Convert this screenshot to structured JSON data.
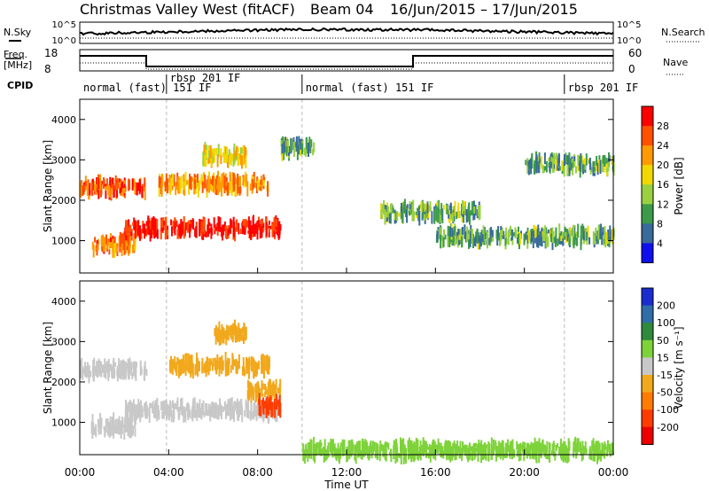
{
  "header": {
    "station": "Christmas Valley West (fitACF)",
    "beam": "Beam 04",
    "date_range": "16/Jun/2015 – 17/Jun/2015"
  },
  "summary_panels": {
    "nsky_label": "N.Sky",
    "nsearch_label": "N.Search",
    "nsky_ticks": [
      "10^5",
      "10^0"
    ],
    "nsearch_ticks": [
      "10^5",
      "10^0"
    ],
    "freq_label_1": "Freq.",
    "freq_label_2": "[MHz]",
    "freq_ticks": [
      "18",
      "8"
    ],
    "nave_label": "Nave",
    "nave_ticks": [
      "60",
      "0"
    ],
    "cpid_label": "CPID",
    "cpid_segments": [
      {
        "label": "normal (fast)  151 IF",
        "start_hour": 0.0
      },
      {
        "label": "rbsp 201 IF",
        "start_hour": 3.9
      },
      {
        "label": "normal (fast)  151 IF",
        "start_hour": 10.0
      },
      {
        "label": "rbsp 201 IF",
        "start_hour": 21.8
      }
    ]
  },
  "power_panel": {
    "ylabel": "Slant Range [km]",
    "colorbar_label": "Power [dB]",
    "colorbar_ticks": [
      "28",
      "24",
      "20",
      "16",
      "12",
      "8",
      "4"
    ],
    "colorbar_colors": [
      "#ff0000",
      "#ff5000",
      "#ff9a00",
      "#f0d800",
      "#98d040",
      "#3c9a4a",
      "#386a9a",
      "#1010ee"
    ]
  },
  "velocity_panel": {
    "ylabel": "Slant Range [km]",
    "colorbar_label": "Velocity [m s⁻¹]",
    "colorbar_ticks": [
      "200",
      "100",
      "50",
      "15",
      "-15",
      "-50",
      "-100",
      "-200"
    ],
    "colorbar_colors": [
      "#1a2cd0",
      "#2f6ea8",
      "#2f8a3c",
      "#7ed23a",
      "#c8c8c8",
      "#f2a81c",
      "#ff7c00",
      "#ff3c00",
      "#ee0000"
    ],
    "ground_scatter_color": "#c0c0c0"
  },
  "chart_data": [
    {
      "type": "heatmap",
      "name": "power",
      "xlabel": "Time UT",
      "ylabel": "Slant Range [km]",
      "xlim": [
        "00:00",
        "00:00"
      ],
      "ylim": [
        200,
        4500
      ],
      "x_ticks": [
        "00:00",
        "04:00",
        "08:00",
        "12:00",
        "16:00",
        "20:00",
        "00:00"
      ],
      "y_ticks": [
        "1000",
        "2000",
        "3000",
        "4000"
      ],
      "grid": false,
      "features": [
        {
          "start_hour": 0.0,
          "end_hour": 3.0,
          "range_km": 2300,
          "power_db": 24
        },
        {
          "start_hour": 0.5,
          "end_hour": 2.5,
          "range_km": 900,
          "power_db": 22
        },
        {
          "start_hour": 2.0,
          "end_hour": 9.0,
          "range_km": 1300,
          "power_db": 28
        },
        {
          "start_hour": 3.5,
          "end_hour": 8.5,
          "range_km": 2400,
          "power_db": 20
        },
        {
          "start_hour": 5.5,
          "end_hour": 7.5,
          "range_km": 3100,
          "power_db": 16
        },
        {
          "start_hour": 9.0,
          "end_hour": 10.5,
          "range_km": 3300,
          "power_db": 10
        },
        {
          "start_hour": 13.5,
          "end_hour": 18.0,
          "range_km": 1700,
          "power_db": 10
        },
        {
          "start_hour": 16.0,
          "end_hour": 24.0,
          "range_km": 1100,
          "power_db": 10
        },
        {
          "start_hour": 20.0,
          "end_hour": 24.0,
          "range_km": 2900,
          "power_db": 10
        }
      ]
    },
    {
      "type": "heatmap",
      "name": "velocity",
      "xlabel": "Time UT",
      "ylabel": "Slant Range [km]",
      "xlim": [
        "00:00",
        "00:00"
      ],
      "ylim": [
        200,
        4500
      ],
      "x_ticks": [
        "00:00",
        "04:00",
        "08:00",
        "12:00",
        "16:00",
        "20:00",
        "00:00"
      ],
      "y_ticks": [
        "1000",
        "2000",
        "3000",
        "4000"
      ],
      "grid": false,
      "features": [
        {
          "start_hour": 0.0,
          "end_hour": 3.0,
          "range_km": 2300,
          "velocity_ms": 0
        },
        {
          "start_hour": 0.5,
          "end_hour": 2.5,
          "range_km": 900,
          "velocity_ms": 0
        },
        {
          "start_hour": 2.0,
          "end_hour": 9.0,
          "range_km": 1300,
          "velocity_ms": 0
        },
        {
          "start_hour": 4.0,
          "end_hour": 8.5,
          "range_km": 2400,
          "velocity_ms": -30
        },
        {
          "start_hour": 6.0,
          "end_hour": 7.5,
          "range_km": 3200,
          "velocity_ms": -30
        },
        {
          "start_hour": 7.5,
          "end_hour": 9.0,
          "range_km": 1800,
          "velocity_ms": -30
        },
        {
          "start_hour": 8.0,
          "end_hour": 9.0,
          "range_km": 1400,
          "velocity_ms": -120
        },
        {
          "start_hour": 10.0,
          "end_hour": 24.0,
          "range_km": 300,
          "velocity_ms": 30
        }
      ]
    }
  ]
}
